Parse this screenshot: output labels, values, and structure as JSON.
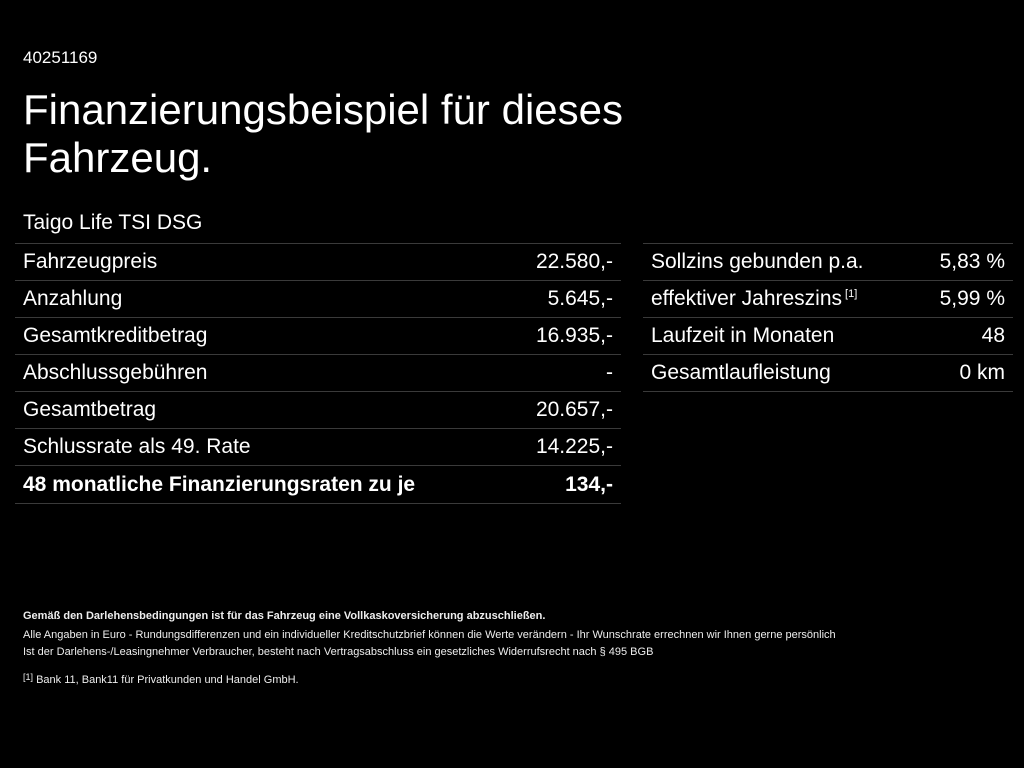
{
  "id": "40251169",
  "title": "Finanzierungsbeispiel für dieses Fahrzeug.",
  "model": "Taigo Life TSI DSG",
  "left_table": [
    {
      "label": "Fahrzeugpreis",
      "value": "22.580,-"
    },
    {
      "label": "Anzahlung",
      "value": "5.645,-"
    },
    {
      "label": "Gesamtkreditbetrag",
      "value": "16.935,-"
    },
    {
      "label": "Abschlussgebühren",
      "value": "-"
    },
    {
      "label": "Gesamtbetrag",
      "value": "20.657,-"
    },
    {
      "label": "Schlussrate als 49. Rate",
      "value": "14.225,-"
    },
    {
      "label": "48 monatliche Finanzierungsraten zu je",
      "value": "134,-"
    }
  ],
  "right_table": [
    {
      "label": "Sollzins gebunden p.a.",
      "value": "5,83 %"
    },
    {
      "label": "effektiver Jahreszins",
      "sup": "[1]",
      "value": "5,99 %"
    },
    {
      "label": "Laufzeit in Monaten",
      "value": "48"
    },
    {
      "label": "Gesamtlaufleistung",
      "value": "0 km"
    }
  ],
  "notes": {
    "bold": "Gemäß den Darlehensbedingungen ist für das Fahrzeug eine Vollkaskoversicherung abzuschließen.",
    "line1": "Alle Angaben in Euro - Rundungsdifferenzen und ein individueller Kreditschutzbrief können die Werte verändern - Ihr Wunschrate errechnen wir Ihnen gerne persönlich",
    "line2": "Ist der Darlehens-/Leasingnehmer Verbraucher, besteht nach Vertragsabschluss ein gesetzliches Widerrufsrecht nach § 495 BGB",
    "footnote_mark": "[1]",
    "footnote": "Bank 11, Bank11 für Privatkunden und Handel GmbH."
  }
}
